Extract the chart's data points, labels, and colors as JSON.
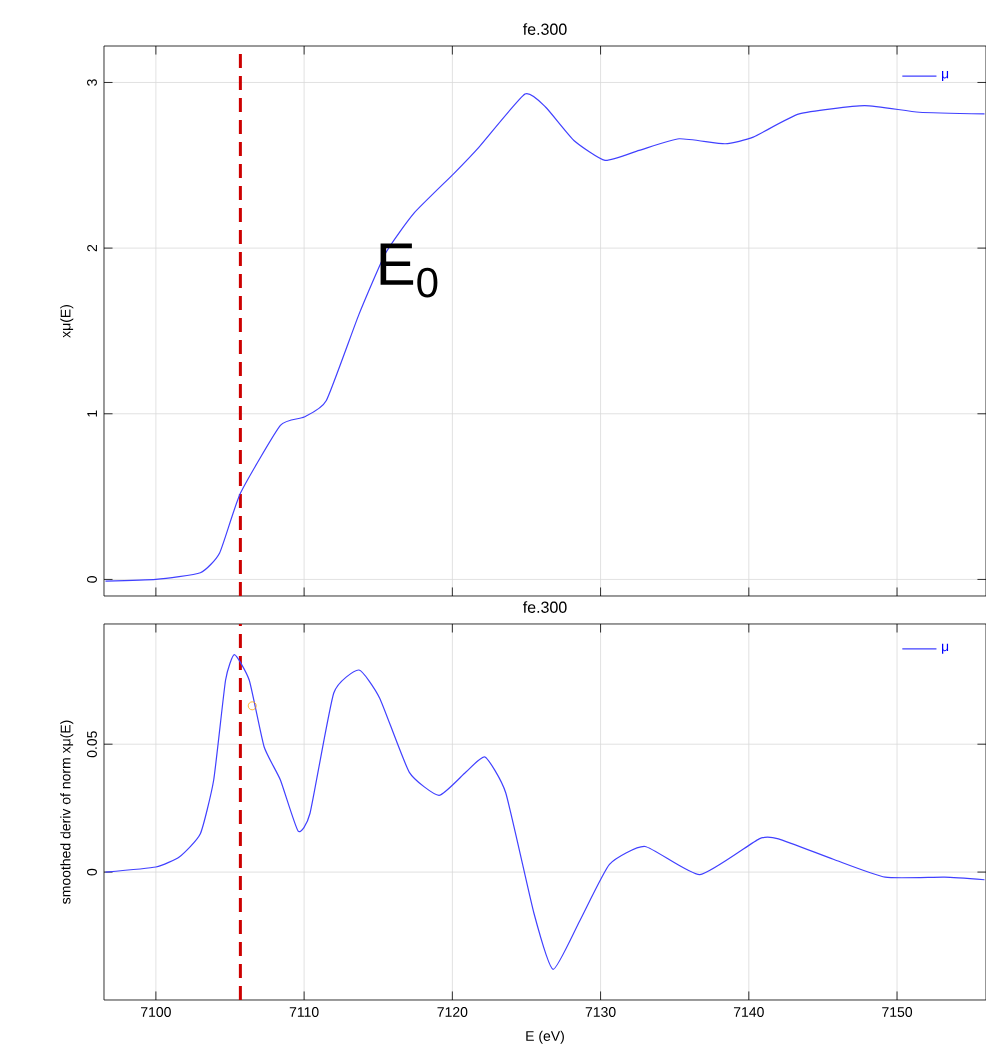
{
  "chart_data": [
    {
      "type": "line",
      "title": "fe.300",
      "ylabel": "xμ(E)",
      "xlim": [
        7096.5,
        7156
      ],
      "ylim": [
        -0.1,
        3.22
      ],
      "xticks": [
        7100,
        7110,
        7120,
        7130,
        7140,
        7150
      ],
      "yticks": [
        0,
        1,
        2,
        3
      ],
      "tick_labels": "y",
      "grid": true,
      "legend": "top right",
      "ref_lines": [
        {
          "axis": "x",
          "value": 7105.7,
          "color": "#cc0000",
          "line_style": "dashed"
        }
      ],
      "annotations": [
        "E$_{0}$"
      ],
      "series": [
        {
          "name": "μ",
          "color": "#4040ff",
          "x": [
            7096.6,
            7100,
            7103,
            7104.3,
            7105.7,
            7108.4,
            7110,
            7111.5,
            7113.7,
            7115.5,
            7117.4,
            7120.1,
            7121.8,
            7124.9,
            7126.3,
            7128.2,
            7130.3,
            7132.6,
            7135.3,
            7138.4,
            7140.3,
            7143.4,
            7147.8,
            7151.5,
            7155.9
          ],
          "values": [
            -0.01,
            0,
            0.04,
            0.16,
            0.52,
            0.93,
            0.98,
            1.08,
            1.6,
            1.97,
            2.21,
            2.45,
            2.61,
            2.93,
            2.85,
            2.65,
            2.53,
            2.59,
            2.66,
            2.63,
            2.67,
            2.81,
            2.86,
            2.82,
            2.81
          ]
        }
      ]
    },
    {
      "type": "line",
      "title": "fe.300",
      "xlabel": "E (eV)",
      "ylabel": "smoothed deriv of norm xμ(E)",
      "xlim": [
        7096.5,
        7156
      ],
      "ylim": [
        -0.05,
        0.097
      ],
      "xticks": [
        7100,
        7110,
        7120,
        7130,
        7140,
        7150
      ],
      "yticks": [
        0,
        0.05
      ],
      "grid": true,
      "legend": "top right",
      "ref_lines": [
        {
          "axis": "x",
          "value": 7105.7,
          "color": "#cc0000",
          "line_style": "dashed"
        }
      ],
      "series": [
        {
          "name": "μ",
          "color": "#4040ff",
          "x": [
            7096.6,
            7100,
            7101.6,
            7103,
            7103.9,
            7104.7,
            7105.3,
            7106.3,
            7107.3,
            7108.4,
            7109.6,
            7110.4,
            7112,
            7113.7,
            7115.1,
            7117.1,
            7119.1,
            7120.9,
            7122.2,
            7123.6,
            7125.5,
            7126.8,
            7128.6,
            7130.6,
            7133,
            7136.7,
            7140.7,
            7142,
            7145.7,
            7149.2,
            7153.2,
            7155.9
          ],
          "values": [
            0,
            0.002,
            0.006,
            0.015,
            0.036,
            0.075,
            0.085,
            0.075,
            0.049,
            0.036,
            0.016,
            0.023,
            0.07,
            0.079,
            0.068,
            0.039,
            0.03,
            0.039,
            0.045,
            0.031,
            -0.016,
            -0.038,
            -0.019,
            0.003,
            0.01,
            -0.001,
            0.013,
            0.013,
            0.005,
            -0.002,
            -0.002,
            -0.003
          ]
        },
        {
          "type": "scatter",
          "color": "#ffa500",
          "marker": "circle",
          "x": [
            7106.5
          ],
          "values": [
            0.065
          ]
        }
      ]
    }
  ]
}
